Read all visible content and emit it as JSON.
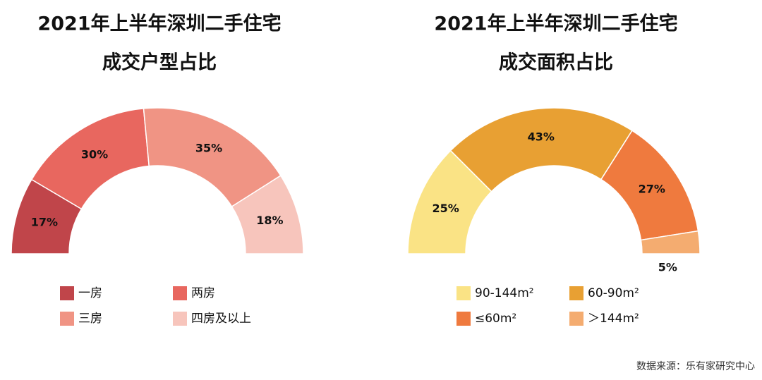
{
  "chart_data": [
    {
      "type": "donut",
      "title": "2021年上半年深圳二手住宅",
      "subtitle": "成交户型占比",
      "categories": [
        "一房",
        "两房",
        "三房",
        "四房及以上"
      ],
      "values": [
        17,
        30,
        35,
        18
      ],
      "value_labels": [
        "17%",
        "30%",
        "35%",
        "18%"
      ],
      "colors": [
        "#c0454a",
        "#e8675f",
        "#f09484",
        "#f7c5bc"
      ]
    },
    {
      "type": "donut",
      "title": "2021年上半年深圳二手住宅",
      "subtitle": "成交面积占比",
      "categories": [
        "90-144m²",
        "60-90m²",
        "≤60m²",
        "＞144m²"
      ],
      "values": [
        25,
        43,
        27,
        5
      ],
      "value_labels": [
        "25%",
        "43%",
        "27%",
        "5%"
      ],
      "colors": [
        "#fae385",
        "#e8a033",
        "#ef7a3e",
        "#f4ac70"
      ]
    }
  ],
  "source": "数据来源：乐有家研究中心"
}
